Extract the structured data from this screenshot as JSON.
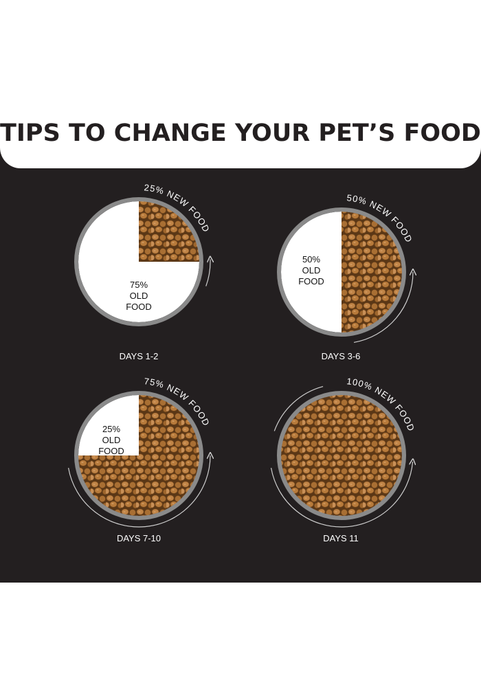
{
  "title": "TIPS TO CHANGE YOUR PET’S FOOD",
  "stages": [
    {
      "day_label": "DAYS 1-2",
      "new_label": "25% NEW FOOD",
      "old_label": [
        "75%",
        "OLD",
        "FOOD"
      ],
      "new_fraction": 0.25
    },
    {
      "day_label": "DAYS 3-6",
      "new_label": "50% NEW FOOD",
      "old_label": [
        "50%",
        "OLD",
        "FOOD"
      ],
      "new_fraction": 0.5
    },
    {
      "day_label": "DAYS 7-10",
      "new_label": "75% NEW FOOD",
      "old_label": [
        "25%",
        "OLD",
        "FOOD"
      ],
      "new_fraction": 0.75
    },
    {
      "day_label": "DAYS 11",
      "new_label": "100% NEW FOOD",
      "old_label": [],
      "new_fraction": 1.0
    }
  ],
  "colors": {
    "background": "#231f20",
    "bowl_rim": "#8a8a8a",
    "kibble": "#b07a3c",
    "old_food": "#ffffff"
  }
}
